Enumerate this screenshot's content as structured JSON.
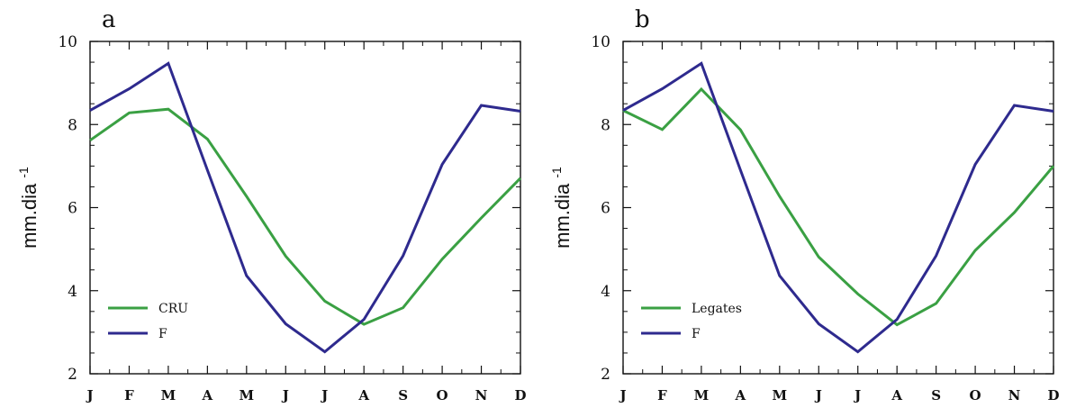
{
  "chart_data": [
    {
      "type": "line",
      "panel_label": "a",
      "ylabel": "mm.dia",
      "ylabel_superscript": "-1",
      "categories": [
        "J",
        "F",
        "M",
        "A",
        "M",
        "J",
        "J",
        "A",
        "S",
        "O",
        "N",
        "D"
      ],
      "yticks": [
        "2",
        "4",
        "6",
        "8",
        "10"
      ],
      "ylim": [
        2,
        10
      ],
      "legend_position": "bottom-left",
      "series": [
        {
          "name": "CRU",
          "color": "#3aa043",
          "values": [
            7.62,
            8.28,
            8.37,
            7.65,
            6.27,
            4.83,
            3.75,
            3.19,
            3.59,
            4.76,
            5.75,
            6.71
          ]
        },
        {
          "name": "F",
          "color": "#2e2a8e",
          "values": [
            8.34,
            8.86,
            9.47,
            6.9,
            4.36,
            3.2,
            2.53,
            3.31,
            4.84,
            7.04,
            8.46,
            8.32
          ]
        }
      ]
    },
    {
      "type": "line",
      "panel_label": "b",
      "ylabel": "mm.dia",
      "ylabel_superscript": "-1",
      "categories": [
        "J",
        "F",
        "M",
        "A",
        "M",
        "J",
        "J",
        "A",
        "S",
        "O",
        "N",
        "D"
      ],
      "yticks": [
        "2",
        "4",
        "6",
        "8",
        "10"
      ],
      "ylim": [
        2,
        10
      ],
      "legend_position": "bottom-left",
      "series": [
        {
          "name": "Legates",
          "color": "#3aa043",
          "values": [
            8.34,
            7.88,
            8.85,
            7.87,
            6.27,
            4.81,
            3.92,
            3.18,
            3.69,
            4.97,
            5.88,
            7.0
          ]
        },
        {
          "name": "F",
          "color": "#2e2a8e",
          "values": [
            8.34,
            8.86,
            9.47,
            6.9,
            4.36,
            3.2,
            2.53,
            3.31,
            4.84,
            7.04,
            8.46,
            8.32
          ]
        }
      ]
    }
  ]
}
